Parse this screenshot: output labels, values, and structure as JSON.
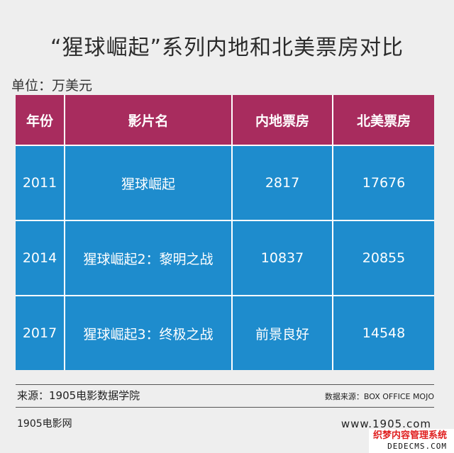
{
  "title": "“猩球崛起”系列内地和北美票房对比",
  "unit": "单位：万美元",
  "table": {
    "headers": [
      "年份",
      "影片名",
      "内地票房",
      "北美票房"
    ],
    "rows": [
      [
        "2011",
        "猩球崛起",
        "2817",
        "17676"
      ],
      [
        "2014",
        "猩球崛起2：黎明之战",
        "10837",
        "20855"
      ],
      [
        "2017",
        "猩球崛起3：终极之战",
        "前景良好",
        "14548"
      ]
    ]
  },
  "footer": {
    "source": "来源：1905电影数据学院",
    "data_source": "数据来源：BOX OFFICE MOJO",
    "brand": "1905电影网",
    "url": "www.1905.com"
  },
  "watermark": {
    "line1": "织梦内容管理系统",
    "line2": "DEDECMS.COM"
  },
  "colors": {
    "header_bg": "#a82c5e",
    "cell_bg": "#1e8ccd",
    "page_bg": "#eeeeee"
  }
}
